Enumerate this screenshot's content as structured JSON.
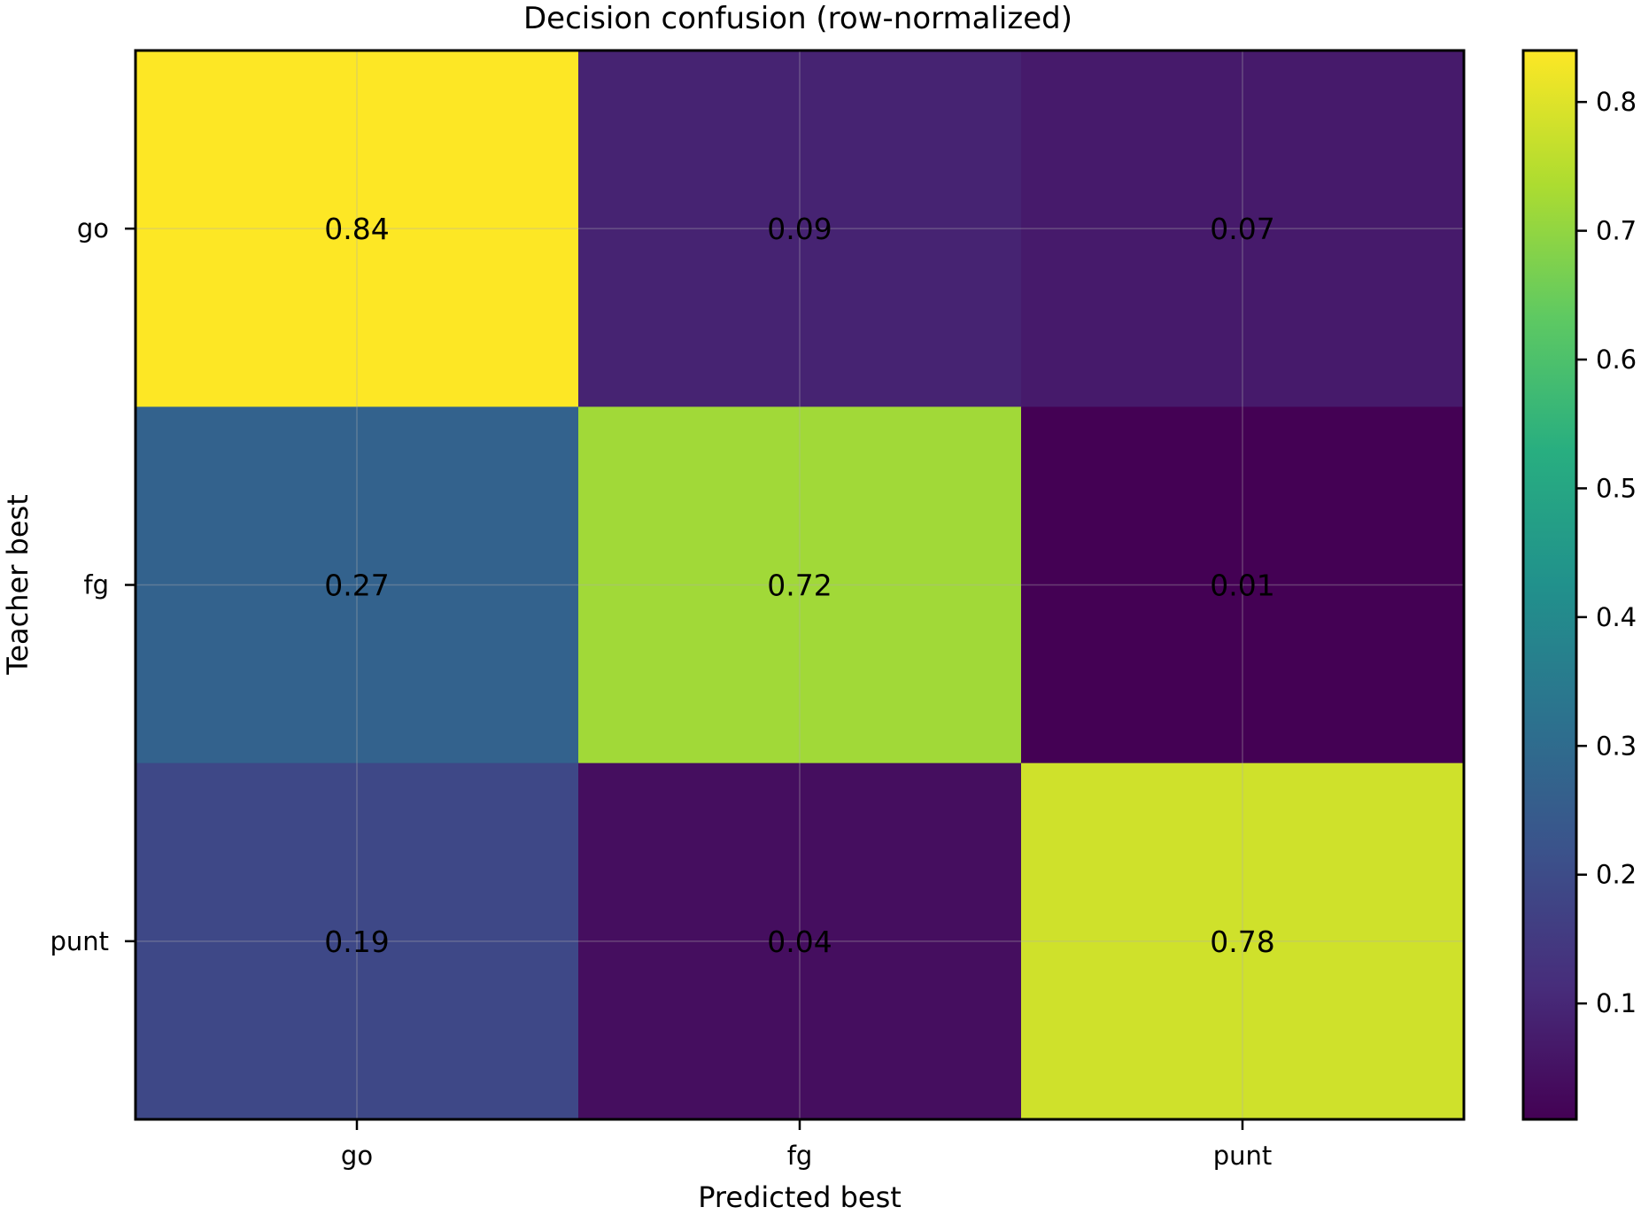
{
  "chart_data": {
    "type": "heatmap",
    "title": "Decision confusion (row-normalized)",
    "xlabel": "Predicted best",
    "ylabel": "Teacher best",
    "x_categories": [
      "go",
      "fg",
      "punt"
    ],
    "y_categories": [
      "go",
      "fg",
      "punt"
    ],
    "values": [
      [
        0.84,
        0.09,
        0.07
      ],
      [
        0.27,
        0.72,
        0.01
      ],
      [
        0.19,
        0.04,
        0.78
      ]
    ],
    "value_labels": [
      [
        "0.84",
        "0.09",
        "0.07"
      ],
      [
        "0.27",
        "0.72",
        "0.01"
      ],
      [
        "0.19",
        "0.04",
        "0.78"
      ]
    ],
    "colormap": "viridis",
    "color_range": [
      0.01,
      0.84
    ],
    "colorbar_ticks": [
      "0.1",
      "0.2",
      "0.3",
      "0.4",
      "0.5",
      "0.6",
      "0.7",
      "0.8"
    ],
    "grid": true
  }
}
